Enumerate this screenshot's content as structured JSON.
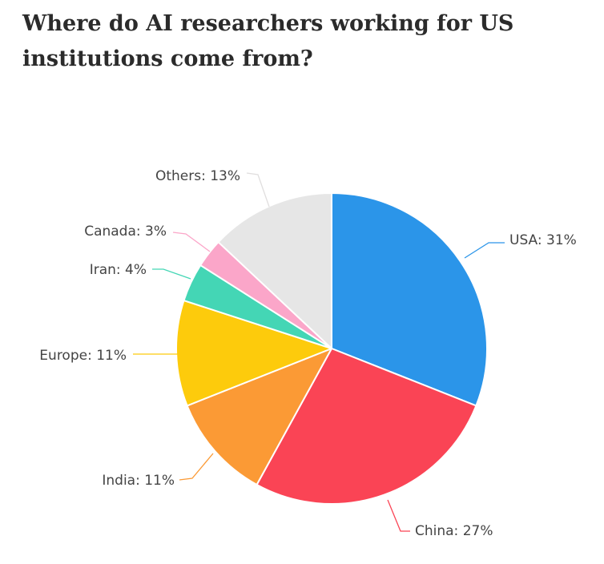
{
  "chart_data": {
    "type": "pie",
    "title": "Where do AI researchers working for US institutions come from?",
    "slices": [
      {
        "label": "USA: 31%",
        "value": 31,
        "color": "#2b95e9"
      },
      {
        "label": "China: 27%",
        "value": 27,
        "color": "#fa4455"
      },
      {
        "label": "India: 11%",
        "value": 11,
        "color": "#fb9a35"
      },
      {
        "label": "Europe: 11%",
        "value": 11,
        "color": "#fdcb0c"
      },
      {
        "label": "Iran: 4%",
        "value": 4,
        "color": "#44d6b5"
      },
      {
        "label": "Canada: 3%",
        "value": 3,
        "color": "#fba6c9"
      },
      {
        "label": "Others: 13%",
        "value": 13,
        "color": "#e6e6e6"
      }
    ],
    "legend": "none"
  }
}
